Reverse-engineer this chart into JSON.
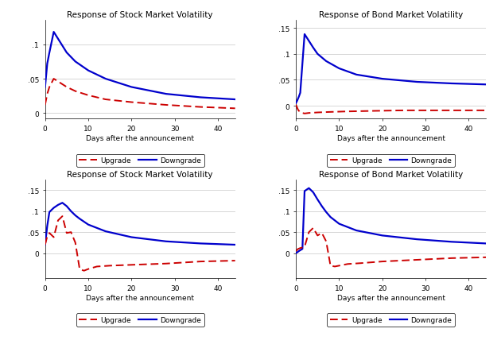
{
  "titles": [
    "Response of Stock Market Volatility",
    "Response of Bond Market Volatility",
    "Response of Stock Market Volatility",
    "Response of Bond Market Volatility"
  ],
  "xlabel": "Days after the announcement",
  "x_max": 44,
  "panels": [
    {
      "ylim": [
        -0.008,
        0.135
      ],
      "yticks": [
        0,
        0.05,
        0.1
      ],
      "yticklabels": [
        "0",
        ".05",
        ".1"
      ],
      "downgrade_x": [
        0,
        0.5,
        1,
        2,
        3,
        4,
        5,
        7,
        10,
        14,
        20,
        28,
        36,
        44
      ],
      "downgrade_y": [
        0.038,
        0.072,
        0.088,
        0.118,
        0.108,
        0.098,
        0.088,
        0.075,
        0.062,
        0.05,
        0.038,
        0.028,
        0.023,
        0.02
      ],
      "upgrade_x": [
        0,
        0.5,
        1,
        2,
        3,
        4,
        5,
        7,
        10,
        14,
        20,
        28,
        36,
        44
      ],
      "upgrade_y": [
        0.012,
        0.028,
        0.038,
        0.05,
        0.046,
        0.042,
        0.038,
        0.032,
        0.026,
        0.02,
        0.016,
        0.012,
        0.009,
        0.007
      ]
    },
    {
      "ylim": [
        -0.025,
        0.165
      ],
      "yticks": [
        0,
        0.05,
        0.1,
        0.15
      ],
      "yticklabels": [
        "0",
        ".05",
        ".1",
        ".15"
      ],
      "downgrade_x": [
        0,
        0.3,
        0.7,
        1,
        2,
        3,
        4,
        5,
        7,
        10,
        14,
        20,
        28,
        36,
        44
      ],
      "downgrade_y": [
        0.005,
        0.01,
        0.018,
        0.025,
        0.138,
        0.125,
        0.112,
        0.1,
        0.086,
        0.072,
        0.06,
        0.052,
        0.046,
        0.043,
        0.041
      ],
      "upgrade_x": [
        0,
        0.5,
        1,
        2,
        3,
        5,
        8,
        12,
        18,
        25,
        35,
        44
      ],
      "upgrade_y": [
        0.002,
        -0.008,
        -0.013,
        -0.015,
        -0.014,
        -0.013,
        -0.012,
        -0.011,
        -0.01,
        -0.009,
        -0.009,
        -0.009
      ]
    },
    {
      "ylim": [
        -0.06,
        0.175
      ],
      "yticks": [
        0,
        0.05,
        0.1,
        0.15
      ],
      "yticklabels": [
        "0",
        ".05",
        ".1",
        ".15"
      ],
      "downgrade_x": [
        0,
        0.5,
        1,
        2,
        3,
        4,
        5,
        6,
        7,
        8,
        10,
        14,
        20,
        28,
        36,
        44
      ],
      "downgrade_y": [
        0.02,
        0.065,
        0.098,
        0.108,
        0.115,
        0.12,
        0.112,
        0.1,
        0.09,
        0.082,
        0.068,
        0.052,
        0.038,
        0.028,
        0.023,
        0.02
      ],
      "upgrade_x": [
        0,
        0.5,
        1,
        2,
        3,
        4,
        5,
        6,
        7,
        8,
        9,
        10,
        11,
        12,
        15,
        20,
        28,
        36,
        44
      ],
      "upgrade_y": [
        0.02,
        0.04,
        0.048,
        0.038,
        0.078,
        0.088,
        0.048,
        0.05,
        0.025,
        -0.038,
        -0.042,
        -0.038,
        -0.035,
        -0.032,
        -0.03,
        -0.028,
        -0.025,
        -0.02,
        -0.018
      ]
    },
    {
      "ylim": [
        -0.06,
        0.175
      ],
      "yticks": [
        0,
        0.05,
        0.1,
        0.15
      ],
      "yticklabels": [
        "0",
        ".05",
        ".1",
        ".15"
      ],
      "downgrade_x": [
        0,
        0.3,
        0.7,
        1.5,
        2,
        3,
        4,
        5,
        6,
        7,
        8,
        10,
        14,
        20,
        28,
        36,
        44
      ],
      "downgrade_y": [
        0.0,
        0.002,
        0.005,
        0.01,
        0.148,
        0.155,
        0.145,
        0.128,
        0.112,
        0.098,
        0.086,
        0.07,
        0.054,
        0.042,
        0.033,
        0.027,
        0.023
      ],
      "upgrade_x": [
        0,
        0.5,
        1,
        2,
        3,
        4,
        5,
        6,
        7,
        8,
        9,
        10,
        11,
        12,
        15,
        20,
        28,
        36,
        44
      ],
      "upgrade_y": [
        0.005,
        0.01,
        0.012,
        0.015,
        0.05,
        0.06,
        0.042,
        0.048,
        0.028,
        -0.03,
        -0.032,
        -0.03,
        -0.028,
        -0.026,
        -0.024,
        -0.02,
        -0.016,
        -0.012,
        -0.01
      ]
    }
  ],
  "upgrade_color": "#CC0000",
  "downgrade_color": "#0000CC",
  "bg_color": "#ffffff",
  "grid_color": "#d0d0d0"
}
